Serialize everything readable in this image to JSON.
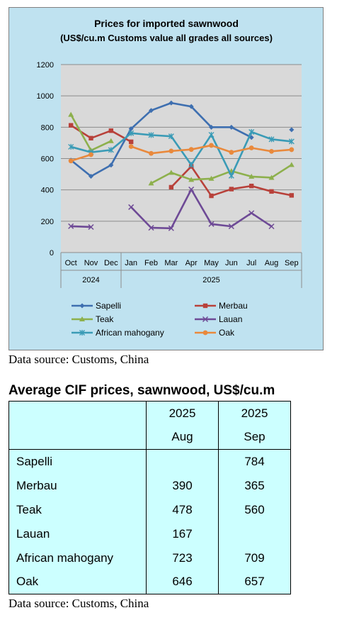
{
  "chart_data": {
    "type": "line",
    "title": "Prices for imported sawnwood",
    "subtitle": "(US$/cu.m Customs value all grades all sources)",
    "categories": [
      "Oct",
      "Nov",
      "Dec",
      "Jan",
      "Feb",
      "Mar",
      "Apr",
      "May",
      "Jun",
      "Jul",
      "Aug",
      "Sep"
    ],
    "year_groups": [
      {
        "label": "2024",
        "span": [
          0,
          2
        ]
      },
      {
        "label": "2025",
        "span": [
          3,
          11
        ]
      }
    ],
    "ylim": [
      0,
      1200
    ],
    "yticks": [
      0,
      200,
      400,
      600,
      800,
      1000,
      1200
    ],
    "ytick_labels": [
      "0",
      "200",
      "400",
      "600",
      "800",
      "1000",
      "1200"
    ],
    "grid": true,
    "legend_placement": "bottom",
    "series": [
      {
        "name": "Sapelli",
        "color": "#3e6fb0",
        "marker": "diamond",
        "values": [
          590,
          487,
          558,
          790,
          907,
          955,
          932,
          800,
          800,
          735,
          null,
          784
        ]
      },
      {
        "name": "Merbau",
        "color": "#b8413a",
        "marker": "square",
        "values": [
          812,
          730,
          778,
          707,
          null,
          417,
          550,
          362,
          405,
          425,
          390,
          365
        ]
      },
      {
        "name": "Teak",
        "color": "#8db04c",
        "marker": "triangle",
        "values": [
          880,
          652,
          712,
          null,
          442,
          510,
          465,
          472,
          520,
          485,
          478,
          560
        ]
      },
      {
        "name": "Lauan",
        "color": "#6e4a96",
        "marker": "x",
        "values": [
          168,
          163,
          null,
          290,
          158,
          155,
          403,
          182,
          167,
          252,
          167,
          null
        ]
      },
      {
        "name": "African mahogany",
        "color": "#3a9bb6",
        "marker": "star",
        "values": [
          675,
          640,
          655,
          762,
          750,
          742,
          560,
          752,
          490,
          770,
          723,
          709
        ]
      },
      {
        "name": "Oak",
        "color": "#e9893c",
        "marker": "circle",
        "values": [
          585,
          625,
          null,
          677,
          633,
          648,
          658,
          684,
          640,
          668,
          646,
          657
        ]
      }
    ]
  },
  "source_note_top": "Data source: Customs, China",
  "table": {
    "title": "Average CIF prices, sawnwood, US$/cu.m",
    "header_year_1": "2025",
    "header_year_2": "2025",
    "header_month_1": "Aug",
    "header_month_2": "Sep",
    "rows": [
      {
        "name": "Sapelli",
        "aug": "",
        "sep": "784"
      },
      {
        "name": "Merbau",
        "aug": "390",
        "sep": "365"
      },
      {
        "name": "Teak",
        "aug": "478",
        "sep": "560"
      },
      {
        "name": "Lauan",
        "aug": "167",
        "sep": ""
      },
      {
        "name": "African mahogany",
        "aug": "723",
        "sep": "709"
      },
      {
        "name": "Oak",
        "aug": "646",
        "sep": "657"
      }
    ]
  },
  "source_note_bottom": "Data source: Customs, China"
}
